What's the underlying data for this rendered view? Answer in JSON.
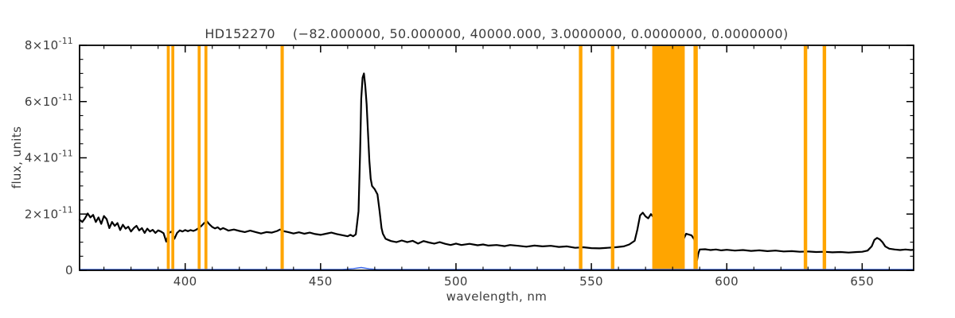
{
  "chart_data": {
    "type": "line",
    "title": "HD152270    (−82.000000, 50.000000, 40000.000, 3.0000000, 0.0000000, 0.0000000)",
    "xlabel": "wavelength, nm",
    "ylabel": "flux, units",
    "xlim": [
      361,
      669
    ],
    "ylim": [
      0,
      8
    ],
    "y_unit_scale": 1e-11,
    "x_ticks": [
      400,
      450,
      500,
      550,
      600,
      650
    ],
    "x_minor": 10,
    "y_minor": 0.5,
    "y_ticks": [
      {
        "v": 0,
        "text": "0",
        "sup": ""
      },
      {
        "v": 2,
        "text": "2×10",
        "sup": "-11"
      },
      {
        "v": 4,
        "text": "4×10",
        "sup": "-11"
      },
      {
        "v": 6,
        "text": "6×10",
        "sup": "-11"
      },
      {
        "v": 8,
        "text": "8×10",
        "sup": "-11"
      }
    ],
    "colors": {
      "spectrum": "#000000",
      "band": "#ffa500",
      "baseline": "#3a66e8",
      "axis": "#000000",
      "text": "#3c3c3c"
    },
    "legend": "none",
    "grid": false,
    "bands": [
      [
        393.2,
        394.3
      ],
      [
        394.9,
        396.0
      ],
      [
        404.6,
        405.7
      ],
      [
        407.1,
        408.2
      ],
      [
        435.2,
        436.4
      ],
      [
        545.4,
        546.7
      ],
      [
        557.2,
        558.5
      ],
      [
        572.5,
        584.5
      ],
      [
        587.7,
        589.3
      ],
      [
        628.4,
        629.7
      ],
      [
        635.4,
        636.7
      ]
    ],
    "series": {
      "spectrum": [
        [
          361,
          1.8
        ],
        [
          362,
          1.72
        ],
        [
          363,
          1.85
        ],
        [
          364,
          2.02
        ],
        [
          365,
          1.88
        ],
        [
          366,
          1.97
        ],
        [
          367,
          1.72
        ],
        [
          368,
          1.88
        ],
        [
          369,
          1.65
        ],
        [
          370,
          1.93
        ],
        [
          371,
          1.82
        ],
        [
          372,
          1.5
        ],
        [
          373,
          1.72
        ],
        [
          374,
          1.58
        ],
        [
          375,
          1.68
        ],
        [
          376,
          1.43
        ],
        [
          377,
          1.62
        ],
        [
          378,
          1.48
        ],
        [
          379,
          1.55
        ],
        [
          380,
          1.38
        ],
        [
          381,
          1.5
        ],
        [
          382,
          1.58
        ],
        [
          383,
          1.42
        ],
        [
          384,
          1.5
        ],
        [
          385,
          1.33
        ],
        [
          386,
          1.48
        ],
        [
          387,
          1.38
        ],
        [
          388,
          1.44
        ],
        [
          389,
          1.33
        ],
        [
          390,
          1.42
        ],
        [
          391,
          1.38
        ],
        [
          392,
          1.32
        ],
        [
          393,
          1.02
        ],
        [
          394,
          1.33
        ],
        [
          395,
          1.38
        ],
        [
          396,
          1.12
        ],
        [
          397,
          1.33
        ],
        [
          398,
          1.42
        ],
        [
          399,
          1.38
        ],
        [
          400,
          1.43
        ],
        [
          401,
          1.39
        ],
        [
          402,
          1.43
        ],
        [
          403,
          1.4
        ],
        [
          404,
          1.44
        ],
        [
          405,
          1.5
        ],
        [
          406,
          1.58
        ],
        [
          407,
          1.68
        ],
        [
          408,
          1.74
        ],
        [
          409,
          1.63
        ],
        [
          410,
          1.54
        ],
        [
          411,
          1.49
        ],
        [
          412,
          1.53
        ],
        [
          413,
          1.45
        ],
        [
          414,
          1.5
        ],
        [
          415,
          1.46
        ],
        [
          416,
          1.41
        ],
        [
          418,
          1.45
        ],
        [
          420,
          1.4
        ],
        [
          422,
          1.36
        ],
        [
          424,
          1.41
        ],
        [
          426,
          1.36
        ],
        [
          428,
          1.31
        ],
        [
          430,
          1.36
        ],
        [
          432,
          1.34
        ],
        [
          434,
          1.4
        ],
        [
          435,
          1.45
        ],
        [
          436,
          1.4
        ],
        [
          438,
          1.36
        ],
        [
          440,
          1.31
        ],
        [
          442,
          1.35
        ],
        [
          444,
          1.3
        ],
        [
          446,
          1.34
        ],
        [
          448,
          1.29
        ],
        [
          450,
          1.26
        ],
        [
          452,
          1.3
        ],
        [
          454,
          1.34
        ],
        [
          456,
          1.29
        ],
        [
          458,
          1.25
        ],
        [
          460,
          1.21
        ],
        [
          461,
          1.26
        ],
        [
          462,
          1.21
        ],
        [
          463,
          1.28
        ],
        [
          464,
          2.1
        ],
        [
          464.6,
          4.2
        ],
        [
          465,
          6.1
        ],
        [
          465.5,
          6.85
        ],
        [
          466,
          7.0
        ],
        [
          466.5,
          6.55
        ],
        [
          467,
          5.9
        ],
        [
          467.5,
          4.9
        ],
        [
          468,
          3.9
        ],
        [
          468.5,
          3.25
        ],
        [
          469,
          3.0
        ],
        [
          470,
          2.88
        ],
        [
          471,
          2.7
        ],
        [
          471.8,
          2.1
        ],
        [
          472.5,
          1.5
        ],
        [
          473,
          1.3
        ],
        [
          474,
          1.12
        ],
        [
          475,
          1.08
        ],
        [
          476,
          1.04
        ],
        [
          478,
          1.0
        ],
        [
          480,
          1.06
        ],
        [
          482,
          1.0
        ],
        [
          484,
          1.05
        ],
        [
          486,
          0.95
        ],
        [
          488,
          1.04
        ],
        [
          490,
          0.99
        ],
        [
          492,
          0.95
        ],
        [
          494,
          1.0
        ],
        [
          496,
          0.94
        ],
        [
          498,
          0.9
        ],
        [
          500,
          0.95
        ],
        [
          502,
          0.9
        ],
        [
          505,
          0.94
        ],
        [
          508,
          0.89
        ],
        [
          510,
          0.92
        ],
        [
          512,
          0.88
        ],
        [
          515,
          0.9
        ],
        [
          518,
          0.86
        ],
        [
          520,
          0.9
        ],
        [
          523,
          0.87
        ],
        [
          526,
          0.84
        ],
        [
          529,
          0.88
        ],
        [
          532,
          0.85
        ],
        [
          535,
          0.87
        ],
        [
          538,
          0.83
        ],
        [
          541,
          0.85
        ],
        [
          544,
          0.8
        ],
        [
          547,
          0.82
        ],
        [
          550,
          0.79
        ],
        [
          553,
          0.78
        ],
        [
          556,
          0.8
        ],
        [
          559,
          0.82
        ],
        [
          562,
          0.85
        ],
        [
          564,
          0.92
        ],
        [
          566,
          1.05
        ],
        [
          567,
          1.45
        ],
        [
          568,
          1.95
        ],
        [
          569,
          2.05
        ],
        [
          570,
          1.92
        ],
        [
          571,
          1.85
        ],
        [
          572,
          2.0
        ],
        [
          573,
          1.88
        ],
        [
          574,
          1.3
        ],
        [
          575,
          0.95
        ],
        [
          577,
          0.88
        ],
        [
          580,
          0.86
        ],
        [
          583,
          0.9
        ],
        [
          585,
          1.3
        ],
        [
          586,
          1.27
        ],
        [
          587,
          1.24
        ],
        [
          588,
          1.1
        ],
        [
          588.6,
          0.55
        ],
        [
          589,
          0.35
        ],
        [
          589.5,
          0.6
        ],
        [
          590,
          0.74
        ],
        [
          592,
          0.75
        ],
        [
          594,
          0.72
        ],
        [
          596,
          0.74
        ],
        [
          598,
          0.71
        ],
        [
          600,
          0.73
        ],
        [
          603,
          0.7
        ],
        [
          606,
          0.72
        ],
        [
          609,
          0.69
        ],
        [
          612,
          0.71
        ],
        [
          615,
          0.68
        ],
        [
          618,
          0.7
        ],
        [
          621,
          0.67
        ],
        [
          624,
          0.68
        ],
        [
          627,
          0.66
        ],
        [
          630,
          0.67
        ],
        [
          633,
          0.65
        ],
        [
          636,
          0.66
        ],
        [
          639,
          0.64
        ],
        [
          642,
          0.65
        ],
        [
          645,
          0.63
        ],
        [
          648,
          0.65
        ],
        [
          650,
          0.66
        ],
        [
          652,
          0.7
        ],
        [
          653.5,
          0.85
        ],
        [
          654.5,
          1.08
        ],
        [
          655.5,
          1.15
        ],
        [
          656.5,
          1.1
        ],
        [
          657.5,
          1.0
        ],
        [
          658.5,
          0.85
        ],
        [
          660,
          0.77
        ],
        [
          662,
          0.74
        ],
        [
          664,
          0.72
        ],
        [
          666,
          0.74
        ],
        [
          668,
          0.72
        ],
        [
          669,
          0.73
        ]
      ],
      "baseline": [
        [
          361,
          0.03
        ],
        [
          458,
          0.03
        ],
        [
          462,
          0.06
        ],
        [
          465,
          0.1
        ],
        [
          468,
          0.05
        ],
        [
          471,
          0.03
        ],
        [
          669,
          0.03
        ]
      ]
    }
  }
}
